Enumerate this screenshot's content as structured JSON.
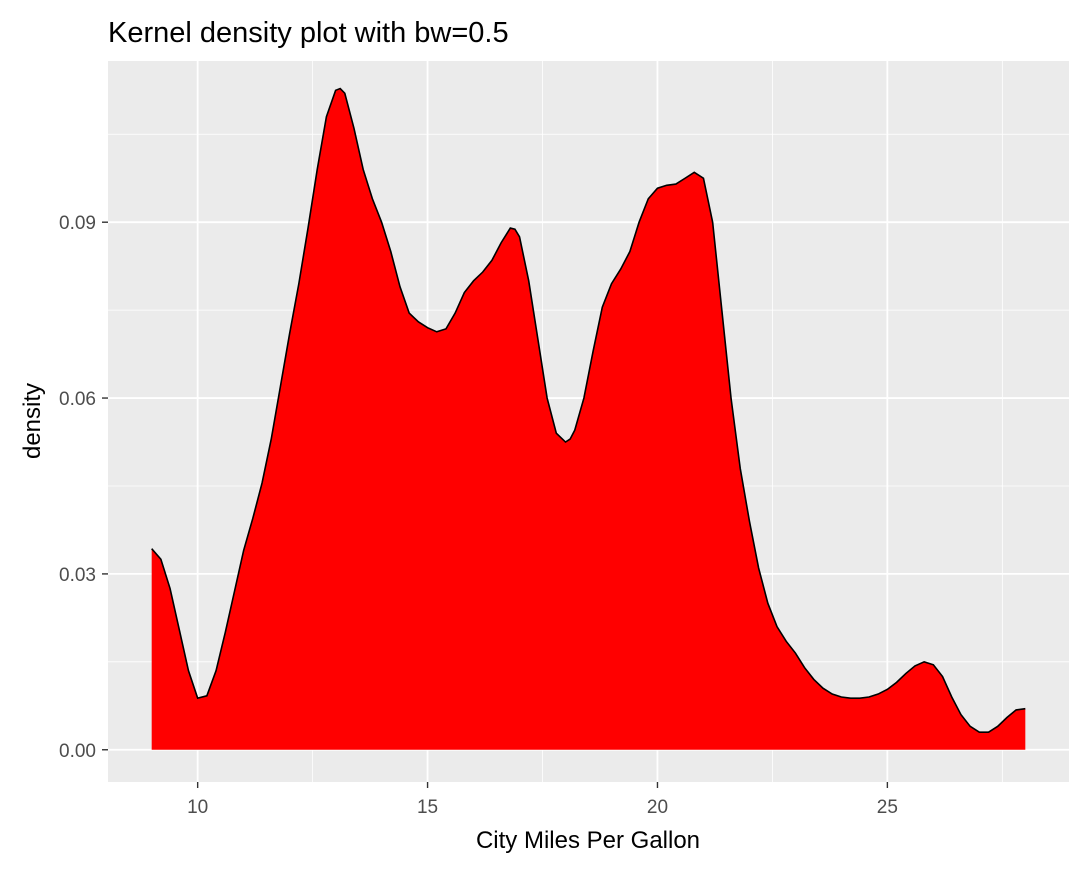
{
  "chart_data": {
    "type": "area",
    "title": "Kernel density plot with bw=0.5",
    "xlabel": "City Miles Per Gallon",
    "ylabel": "density",
    "xlim": [
      8.05,
      28.95
    ],
    "ylim": [
      -0.0055,
      0.1175
    ],
    "x_ticks": [
      10,
      15,
      20,
      25
    ],
    "y_ticks": [
      0.0,
      0.03,
      0.06,
      0.09
    ],
    "x_tick_labels": [
      "10",
      "15",
      "20",
      "25"
    ],
    "y_tick_labels": [
      "0.00",
      "0.03",
      "0.06",
      "0.09"
    ],
    "grid": true,
    "fill_color": "#ff0000",
    "line_color": "#000000",
    "panel_color": "#ebebeb",
    "grid_color": "#ffffff",
    "series": [
      {
        "x": [
          9.0,
          9.2,
          9.4,
          9.6,
          9.8,
          10.0,
          10.2,
          10.4,
          10.6,
          10.8,
          11.0,
          11.2,
          11.4,
          11.6,
          11.8,
          12.0,
          12.2,
          12.4,
          12.6,
          12.8,
          13.0,
          13.1,
          13.2,
          13.4,
          13.6,
          13.8,
          14.0,
          14.2,
          14.4,
          14.6,
          14.8,
          15.0,
          15.2,
          15.4,
          15.6,
          15.8,
          16.0,
          16.2,
          16.4,
          16.6,
          16.8,
          16.9,
          17.0,
          17.2,
          17.4,
          17.6,
          17.8,
          18.0,
          18.1,
          18.2,
          18.4,
          18.6,
          18.8,
          19.0,
          19.2,
          19.4,
          19.6,
          19.8,
          20.0,
          20.2,
          20.4,
          20.6,
          20.8,
          21.0,
          21.2,
          21.4,
          21.6,
          21.8,
          22.0,
          22.2,
          22.4,
          22.6,
          22.8,
          23.0,
          23.2,
          23.4,
          23.6,
          23.8,
          24.0,
          24.2,
          24.4,
          24.6,
          24.8,
          25.0,
          25.2,
          25.4,
          25.6,
          25.8,
          26.0,
          26.2,
          26.4,
          26.6,
          26.8,
          27.0,
          27.2,
          27.4,
          27.6,
          27.8,
          28.0
        ],
        "y": [
          0.0343,
          0.0325,
          0.0275,
          0.0205,
          0.0135,
          0.0088,
          0.0092,
          0.0135,
          0.02,
          0.027,
          0.034,
          0.0395,
          0.0455,
          0.053,
          0.062,
          0.071,
          0.0795,
          0.089,
          0.099,
          0.108,
          0.1125,
          0.1128,
          0.112,
          0.106,
          0.099,
          0.094,
          0.09,
          0.085,
          0.079,
          0.0745,
          0.073,
          0.072,
          0.0713,
          0.0718,
          0.0745,
          0.078,
          0.08,
          0.0815,
          0.0835,
          0.0865,
          0.089,
          0.0888,
          0.0875,
          0.08,
          0.07,
          0.06,
          0.054,
          0.0525,
          0.053,
          0.0545,
          0.06,
          0.068,
          0.0755,
          0.0795,
          0.082,
          0.085,
          0.09,
          0.094,
          0.0958,
          0.0963,
          0.0965,
          0.0975,
          0.0985,
          0.0975,
          0.09,
          0.075,
          0.06,
          0.048,
          0.039,
          0.031,
          0.025,
          0.021,
          0.0185,
          0.0165,
          0.014,
          0.012,
          0.0105,
          0.0095,
          0.009,
          0.0088,
          0.0088,
          0.009,
          0.0095,
          0.0103,
          0.0115,
          0.013,
          0.0143,
          0.015,
          0.0145,
          0.0125,
          0.009,
          0.006,
          0.004,
          0.003,
          0.003,
          0.004,
          0.0055,
          0.0068,
          0.007
        ]
      }
    ]
  }
}
